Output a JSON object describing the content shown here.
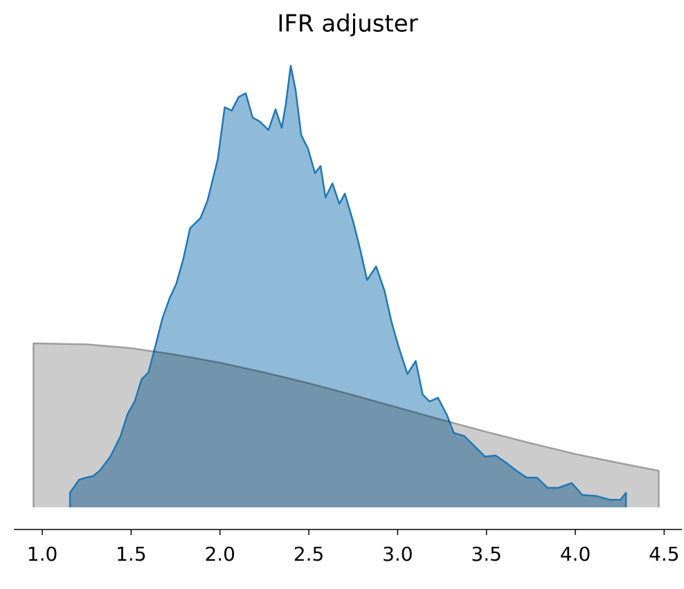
{
  "chart_data": {
    "type": "area",
    "title": "IFR adjuster",
    "xlim": [
      0.84,
      4.6
    ],
    "xticks": [
      {
        "value": 1,
        "label": "1.0"
      },
      {
        "value": 1.5,
        "label": "1.5"
      },
      {
        "value": 2,
        "label": "2.0"
      },
      {
        "value": 2.5,
        "label": "2.5"
      },
      {
        "value": 3,
        "label": "3.0"
      },
      {
        "value": 3.5,
        "label": "3.5"
      },
      {
        "value": 4,
        "label": "4.0"
      },
      {
        "value": 4.5,
        "label": "4.5"
      }
    ],
    "ylim": [
      0,
      0.85
    ],
    "series": [
      {
        "color": "#1f77b4",
        "x": [
          1.156,
          1.207,
          1.246,
          1.285,
          1.324,
          1.383,
          1.441,
          1.48,
          1.52,
          1.559,
          1.598,
          1.637,
          1.676,
          1.715,
          1.754,
          1.793,
          1.832,
          1.891,
          1.93,
          1.988,
          2.027,
          2.066,
          2.105,
          2.145,
          2.184,
          2.223,
          2.273,
          2.313,
          2.348,
          2.371,
          2.398,
          2.426,
          2.457,
          2.496,
          2.535,
          2.566,
          2.594,
          2.633,
          2.672,
          2.703,
          2.75,
          2.789,
          2.828,
          2.879,
          2.926,
          2.965,
          3.004,
          3.055,
          3.102,
          3.141,
          3.18,
          3.227,
          3.277,
          3.316,
          3.375,
          3.434,
          3.492,
          3.551,
          3.609,
          3.668,
          3.727,
          3.785,
          3.844,
          3.902,
          3.98,
          4.039,
          4.117,
          4.195,
          4.254,
          4.285
        ],
        "values": [
          0.027,
          0.051,
          0.055,
          0.058,
          0.068,
          0.094,
          0.132,
          0.173,
          0.196,
          0.237,
          0.25,
          0.299,
          0.35,
          0.386,
          0.414,
          0.459,
          0.517,
          0.536,
          0.568,
          0.645,
          0.741,
          0.735,
          0.76,
          0.767,
          0.722,
          0.715,
          0.699,
          0.737,
          0.703,
          0.747,
          0.818,
          0.773,
          0.69,
          0.664,
          0.619,
          0.632,
          0.574,
          0.6,
          0.562,
          0.581,
          0.529,
          0.478,
          0.421,
          0.446,
          0.401,
          0.344,
          0.299,
          0.247,
          0.271,
          0.209,
          0.196,
          0.203,
          0.171,
          0.138,
          0.132,
          0.113,
          0.094,
          0.096,
          0.083,
          0.068,
          0.055,
          0.055,
          0.036,
          0.036,
          0.045,
          0.023,
          0.021,
          0.014,
          0.014,
          0.027
        ]
      },
      {
        "color": "#000000",
        "x": [
          0.95,
          1.25,
          1.5,
          1.75,
          2.0,
          2.25,
          2.5,
          2.75,
          3.0,
          3.25,
          3.5,
          3.75,
          4.0,
          4.25,
          4.47
        ],
        "values": [
          0.304,
          0.302,
          0.295,
          0.283,
          0.268,
          0.25,
          0.23,
          0.208,
          0.185,
          0.162,
          0.14,
          0.119,
          0.099,
          0.082,
          0.068
        ]
      }
    ]
  }
}
